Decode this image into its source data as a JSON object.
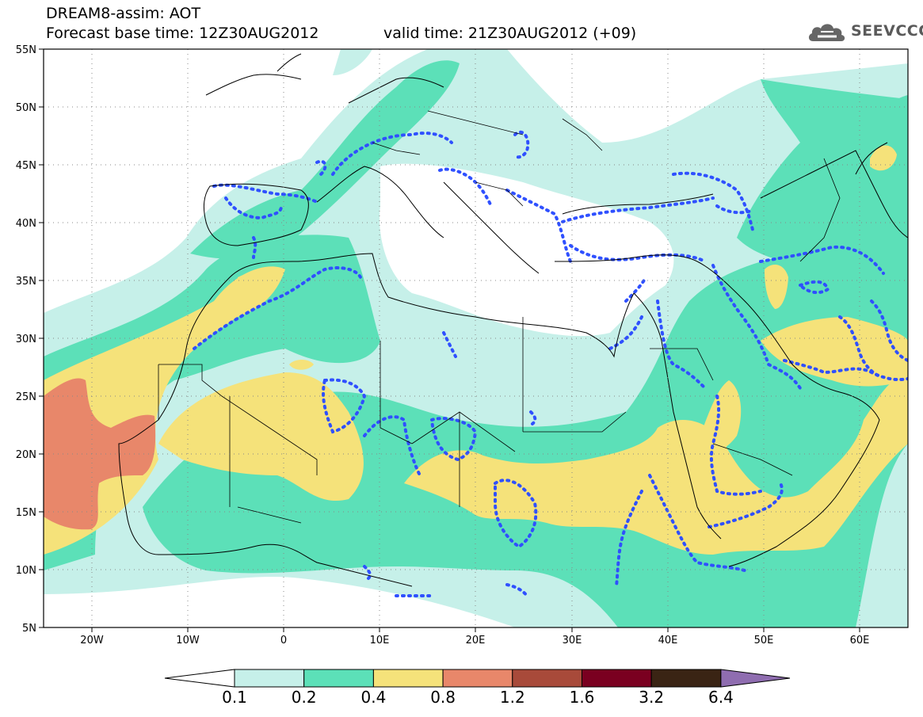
{
  "header": {
    "line1": "DREAM8-assim: AOT",
    "line2": "Forecast base time: 12Z30AUG2012",
    "line3": "valid time: 21Z30AUG2012 (+09)"
  },
  "logo": {
    "text": "SEEVCCC",
    "icon": "cloud-icon"
  },
  "map": {
    "projection": "lat-lon",
    "lon_range": [
      -25,
      65
    ],
    "lat_range": [
      5,
      55
    ],
    "grid": "dotted",
    "lon_ticks": [
      "20W",
      "10W",
      "0",
      "10E",
      "20E",
      "30E",
      "40E",
      "50E",
      "60E"
    ],
    "lat_ticks": [
      "5N",
      "10N",
      "15N",
      "20N",
      "25N",
      "30N",
      "35N",
      "40N",
      "45N",
      "50N",
      "55N"
    ],
    "overlay": "blue dotted contours",
    "colors": {
      "c0": "#ffffff",
      "c1": "#c6f0e9",
      "c2": "#5ce0b8",
      "c3": "#f5e27a",
      "c4": "#e8876a",
      "c5": "#a84a3a",
      "c6": "#7a0020",
      "c7": "#3a2414",
      "c8": "#8f6db0",
      "overlay": "#2f50ff"
    }
  },
  "colorbar": {
    "labels": [
      "0.1",
      "0.2",
      "0.4",
      "0.8",
      "1.2",
      "1.6",
      "3.2",
      "6.4"
    ],
    "bins": [
      "#c6f0e9",
      "#5ce0b8",
      "#f5e27a",
      "#e8876a",
      "#a84a3a",
      "#7a0020",
      "#3a2414"
    ],
    "under_color": "#ffffff",
    "over_color": "#8f6db0"
  }
}
